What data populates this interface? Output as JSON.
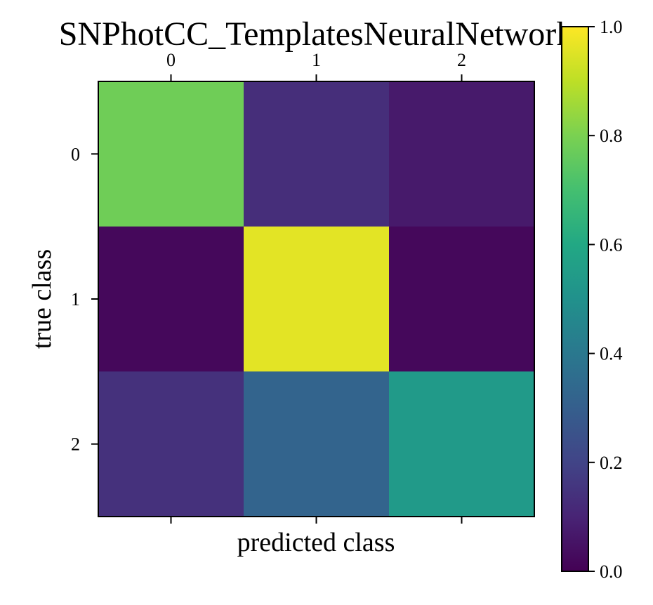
{
  "chart_data": {
    "type": "heatmap",
    "title": "SNPhotCC_TemplatesNeuralNetwork",
    "xlabel": "predicted class",
    "ylabel": "true class",
    "x_categories": [
      "0",
      "1",
      "2"
    ],
    "y_categories": [
      "0",
      "1",
      "2"
    ],
    "values": [
      [
        0.78,
        0.13,
        0.07
      ],
      [
        0.02,
        0.96,
        0.02
      ],
      [
        0.14,
        0.32,
        0.54
      ]
    ],
    "colormap": "viridis",
    "clim": [
      0.0,
      1.0
    ],
    "colorbar_ticks": [
      "0.0",
      "0.2",
      "0.4",
      "0.6",
      "0.8",
      "1.0"
    ],
    "x_tick_position": "top",
    "grid": false
  }
}
